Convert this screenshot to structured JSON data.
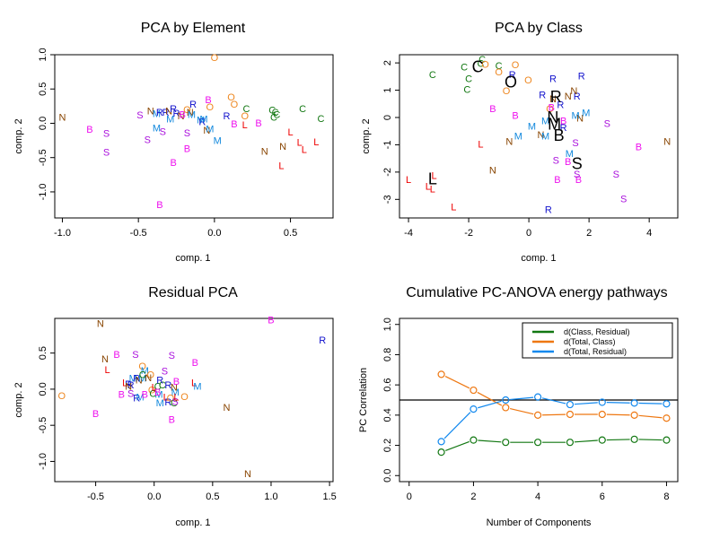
{
  "colors": {
    "B": "#ee11ee",
    "C": "#117711",
    "L": "#ee0000",
    "M": "#1188dd",
    "N": "#884400",
    "O": "#ee8822",
    "R": "#1111cc",
    "S": "#aa11dd",
    "green": "#117711",
    "orange": "#ee7711",
    "blue": "#1188ee",
    "black": "#000000"
  },
  "chart_data": [
    {
      "type": "scatter",
      "title": "PCA by Element",
      "xlabel": "comp. 1",
      "ylabel": "comp. 2",
      "xlim": [
        -1.05,
        0.78
      ],
      "ylim": [
        -1.38,
        1.0
      ],
      "xticks": [
        -1.0,
        -0.5,
        0.0,
        0.5
      ],
      "xtick_labels": [
        "-1.0",
        "-0.5",
        "0.0",
        "0.5"
      ],
      "yticks": [
        -1.0,
        -0.5,
        0.0,
        0.5,
        1.0
      ],
      "ytick_labels": [
        "-1.0",
        "-0.5",
        "0.0",
        "0.5",
        "1.0"
      ],
      "points": [
        {
          "label": "N",
          "x": -1.0,
          "y": 0.08
        },
        {
          "label": "B",
          "x": -0.82,
          "y": -0.1
        },
        {
          "label": "S",
          "x": -0.71,
          "y": -0.16
        },
        {
          "label": "S",
          "x": -0.71,
          "y": -0.43
        },
        {
          "label": "S",
          "x": -0.49,
          "y": 0.11
        },
        {
          "label": "S",
          "x": -0.44,
          "y": -0.25
        },
        {
          "label": "N",
          "x": -0.42,
          "y": 0.17
        },
        {
          "label": "M",
          "x": -0.38,
          "y": 0.13
        },
        {
          "label": "R",
          "x": -0.36,
          "y": 0.15
        },
        {
          "label": "M",
          "x": -0.38,
          "y": -0.08
        },
        {
          "label": "S",
          "x": -0.34,
          "y": -0.13
        },
        {
          "label": "B",
          "x": -0.36,
          "y": -1.2
        },
        {
          "label": "R",
          "x": -0.32,
          "y": 0.15
        },
        {
          "label": "N",
          "x": -0.3,
          "y": 0.17
        },
        {
          "label": "M",
          "x": -0.29,
          "y": 0.05
        },
        {
          "label": "R",
          "x": -0.27,
          "y": 0.2
        },
        {
          "label": "R",
          "x": -0.25,
          "y": 0.14
        },
        {
          "label": "B",
          "x": -0.27,
          "y": -0.58
        },
        {
          "label": "N",
          "x": -0.22,
          "y": 0.1
        },
        {
          "label": "B",
          "x": -0.21,
          "y": 0.12
        },
        {
          "label": "O",
          "x": -0.18,
          "y": 0.19
        },
        {
          "label": "N",
          "x": -0.16,
          "y": 0.15
        },
        {
          "label": "M",
          "x": -0.15,
          "y": 0.12
        },
        {
          "label": "R",
          "x": -0.14,
          "y": 0.27
        },
        {
          "label": "S",
          "x": -0.18,
          "y": -0.15
        },
        {
          "label": "B",
          "x": -0.18,
          "y": -0.38
        },
        {
          "label": "M",
          "x": -0.09,
          "y": 0.04
        },
        {
          "label": "R",
          "x": -0.08,
          "y": 0.01
        },
        {
          "label": "M",
          "x": -0.07,
          "y": 0.05
        },
        {
          "label": "N",
          "x": -0.05,
          "y": -0.11
        },
        {
          "label": "M",
          "x": -0.03,
          "y": -0.09
        },
        {
          "label": "B",
          "x": -0.04,
          "y": 0.33
        },
        {
          "label": "O",
          "x": -0.03,
          "y": 0.23
        },
        {
          "label": "M",
          "x": 0.02,
          "y": -0.26
        },
        {
          "label": "O",
          "x": 0.0,
          "y": 0.95
        },
        {
          "label": "R",
          "x": 0.08,
          "y": 0.1
        },
        {
          "label": "O",
          "x": 0.11,
          "y": 0.37
        },
        {
          "label": "O",
          "x": 0.13,
          "y": 0.27
        },
        {
          "label": "B",
          "x": 0.13,
          "y": -0.02
        },
        {
          "label": "O",
          "x": 0.2,
          "y": 0.1
        },
        {
          "label": "L",
          "x": 0.2,
          "y": -0.03
        },
        {
          "label": "C",
          "x": 0.21,
          "y": 0.2
        },
        {
          "label": "B",
          "x": 0.29,
          "y": -0.01
        },
        {
          "label": "N",
          "x": 0.33,
          "y": -0.42
        },
        {
          "label": "C",
          "x": 0.38,
          "y": 0.18
        },
        {
          "label": "C",
          "x": 0.39,
          "y": 0.08
        },
        {
          "label": "C",
          "x": 0.4,
          "y": 0.15
        },
        {
          "label": "C",
          "x": 0.41,
          "y": 0.12
        },
        {
          "label": "N",
          "x": 0.45,
          "y": -0.35
        },
        {
          "label": "L",
          "x": 0.44,
          "y": -0.63
        },
        {
          "label": "L",
          "x": 0.5,
          "y": -0.14
        },
        {
          "label": "L",
          "x": 0.56,
          "y": -0.29
        },
        {
          "label": "L",
          "x": 0.59,
          "y": -0.39
        },
        {
          "label": "C",
          "x": 0.58,
          "y": 0.2
        },
        {
          "label": "L",
          "x": 0.67,
          "y": -0.28
        },
        {
          "label": "C",
          "x": 0.7,
          "y": 0.06
        }
      ]
    },
    {
      "type": "scatter",
      "title": "PCA by Class",
      "xlabel": "comp. 1",
      "ylabel": "comp. 2",
      "xlim": [
        -4.3,
        4.95
      ],
      "ylim": [
        -3.68,
        2.3
      ],
      "xticks": [
        -4,
        -2,
        0,
        2,
        4
      ],
      "xtick_labels": [
        "-4",
        "-2",
        "0",
        "2",
        "4"
      ],
      "yticks": [
        -3,
        -2,
        -1,
        0,
        1,
        2
      ],
      "ytick_labels": [
        "-3",
        "-2",
        "-1",
        "0",
        "1",
        "2"
      ],
      "points": [
        {
          "label": "C",
          "x": -3.2,
          "y": 1.55
        },
        {
          "label": "C",
          "x": -2.15,
          "y": 1.83
        },
        {
          "label": "C",
          "x": -2.0,
          "y": 1.4
        },
        {
          "label": "C",
          "x": -2.05,
          "y": 1.0
        },
        {
          "label": "C",
          "x": -1.55,
          "y": 2.1
        },
        {
          "label": "C",
          "x": -1.6,
          "y": 1.95
        },
        {
          "label": "C",
          "x": -1.0,
          "y": 1.88
        },
        {
          "label": "O",
          "x": -1.45,
          "y": 1.92
        },
        {
          "label": "O",
          "x": -1.0,
          "y": 1.65
        },
        {
          "label": "O",
          "x": -0.45,
          "y": 1.9
        },
        {
          "label": "O",
          "x": -0.02,
          "y": 1.35
        },
        {
          "label": "O",
          "x": -0.75,
          "y": 0.95
        },
        {
          "label": "O",
          "x": 0.7,
          "y": 0.3
        },
        {
          "label": "R",
          "x": -0.55,
          "y": 1.55
        },
        {
          "label": "R",
          "x": 0.8,
          "y": 1.4
        },
        {
          "label": "R",
          "x": 1.75,
          "y": 1.5
        },
        {
          "label": "R",
          "x": 0.45,
          "y": 0.8
        },
        {
          "label": "R",
          "x": 1.05,
          "y": 0.45
        },
        {
          "label": "R",
          "x": 1.6,
          "y": 0.75
        },
        {
          "label": "R",
          "x": 1.15,
          "y": -0.4
        },
        {
          "label": "R",
          "x": 0.65,
          "y": -3.4
        },
        {
          "label": "N",
          "x": 1.5,
          "y": 0.95
        },
        {
          "label": "N",
          "x": 1.3,
          "y": 0.75
        },
        {
          "label": "N",
          "x": 0.8,
          "y": 0.65
        },
        {
          "label": "N",
          "x": 1.7,
          "y": -0.05
        },
        {
          "label": "N",
          "x": -0.65,
          "y": -0.9
        },
        {
          "label": "N",
          "x": 0.4,
          "y": -0.65
        },
        {
          "label": "N",
          "x": -1.2,
          "y": -1.95
        },
        {
          "label": "N",
          "x": 4.6,
          "y": -0.9
        },
        {
          "label": "B",
          "x": -1.2,
          "y": 0.3
        },
        {
          "label": "B",
          "x": -0.45,
          "y": 0.05
        },
        {
          "label": "B",
          "x": 0.75,
          "y": 0.35
        },
        {
          "label": "B",
          "x": 1.15,
          "y": -0.15
        },
        {
          "label": "B",
          "x": 3.65,
          "y": -1.1
        },
        {
          "label": "B",
          "x": 1.3,
          "y": -1.65
        },
        {
          "label": "B",
          "x": 0.95,
          "y": -2.3
        },
        {
          "label": "B",
          "x": 1.65,
          "y": -2.3
        },
        {
          "label": "M",
          "x": 0.1,
          "y": -0.35
        },
        {
          "label": "M",
          "x": -0.35,
          "y": -0.7
        },
        {
          "label": "M",
          "x": 0.55,
          "y": -0.7
        },
        {
          "label": "M",
          "x": 0.55,
          "y": -0.15
        },
        {
          "label": "M",
          "x": 1.55,
          "y": 0.05
        },
        {
          "label": "M",
          "x": 1.9,
          "y": 0.15
        },
        {
          "label": "M",
          "x": 1.35,
          "y": -1.35
        },
        {
          "label": "S",
          "x": 1.55,
          "y": -0.95
        },
        {
          "label": "S",
          "x": 2.6,
          "y": -0.25
        },
        {
          "label": "S",
          "x": 0.9,
          "y": -1.6
        },
        {
          "label": "S",
          "x": 1.6,
          "y": -2.1
        },
        {
          "label": "S",
          "x": 2.9,
          "y": -2.1
        },
        {
          "label": "S",
          "x": 3.15,
          "y": -3.0
        },
        {
          "label": "L",
          "x": -4.0,
          "y": -2.3
        },
        {
          "label": "L",
          "x": -3.15,
          "y": -2.15
        },
        {
          "label": "L",
          "x": -3.35,
          "y": -2.55
        },
        {
          "label": "L",
          "x": -3.2,
          "y": -2.65
        },
        {
          "label": "L",
          "x": -2.5,
          "y": -3.3
        },
        {
          "label": "L",
          "x": -1.6,
          "y": -1.0
        }
      ],
      "centroids": [
        {
          "label": "C",
          "x": -1.7,
          "y": 1.85
        },
        {
          "label": "O",
          "x": -0.6,
          "y": 1.3
        },
        {
          "label": "R",
          "x": 0.9,
          "y": 0.75
        },
        {
          "label": "N",
          "x": 0.8,
          "y": 0.0
        },
        {
          "label": "M",
          "x": 0.85,
          "y": -0.25
        },
        {
          "label": "B",
          "x": 1.0,
          "y": -0.65
        },
        {
          "label": "S",
          "x": 1.6,
          "y": -1.7
        },
        {
          "label": "L",
          "x": -3.2,
          "y": -2.25
        }
      ]
    },
    {
      "type": "scatter",
      "title": "Residual PCA",
      "xlabel": "comp. 1",
      "ylabel": "comp. 2",
      "xlim": [
        -0.85,
        1.53
      ],
      "ylim": [
        -1.28,
        0.98
      ],
      "xticks": [
        -0.5,
        0.0,
        0.5,
        1.0,
        1.5
      ],
      "xtick_labels": [
        "-0.5",
        "0.0",
        "0.5",
        "1.0",
        "1.5"
      ],
      "yticks": [
        -1.0,
        -0.5,
        0.0,
        0.5
      ],
      "ytick_labels": [
        "-1.0",
        "-0.5",
        "0.0",
        "0.5"
      ],
      "points": [
        {
          "label": "O",
          "x": -0.79,
          "y": -0.1
        },
        {
          "label": "N",
          "x": -0.46,
          "y": 0.9
        },
        {
          "label": "N",
          "x": -0.42,
          "y": 0.41
        },
        {
          "label": "L",
          "x": -0.4,
          "y": 0.26
        },
        {
          "label": "B",
          "x": -0.32,
          "y": 0.47
        },
        {
          "label": "B",
          "x": -0.5,
          "y": -0.35
        },
        {
          "label": "B",
          "x": -0.28,
          "y": -0.08
        },
        {
          "label": "S",
          "x": -0.16,
          "y": 0.47
        },
        {
          "label": "S",
          "x": -0.2,
          "y": -0.07
        },
        {
          "label": "L",
          "x": -0.25,
          "y": 0.08
        },
        {
          "label": "R",
          "x": -0.22,
          "y": 0.06
        },
        {
          "label": "R",
          "x": -0.2,
          "y": 0.05
        },
        {
          "label": "N",
          "x": -0.22,
          "y": 0.03
        },
        {
          "label": "M",
          "x": -0.18,
          "y": 0.14
        },
        {
          "label": "R",
          "x": -0.15,
          "y": 0.14
        },
        {
          "label": "N",
          "x": -0.13,
          "y": 0.12
        },
        {
          "label": "M",
          "x": -0.1,
          "y": 0.14
        },
        {
          "label": "O",
          "x": -0.1,
          "y": 0.31
        },
        {
          "label": "M",
          "x": -0.08,
          "y": 0.25
        },
        {
          "label": "C",
          "x": -0.1,
          "y": 0.19
        },
        {
          "label": "O",
          "x": -0.03,
          "y": 0.19
        },
        {
          "label": "N",
          "x": -0.05,
          "y": 0.15
        },
        {
          "label": "R",
          "x": -0.15,
          "y": -0.13
        },
        {
          "label": "M",
          "x": -0.12,
          "y": -0.12
        },
        {
          "label": "B",
          "x": -0.08,
          "y": -0.08
        },
        {
          "label": "O",
          "x": -0.02,
          "y": -0.02
        },
        {
          "label": "C",
          "x": -0.01,
          "y": -0.07
        },
        {
          "label": "L",
          "x": 0.0,
          "y": 0.02
        },
        {
          "label": "C",
          "x": 0.03,
          "y": 0.03
        },
        {
          "label": "C",
          "x": 0.07,
          "y": 0.05
        },
        {
          "label": "M",
          "x": 0.04,
          "y": -0.08
        },
        {
          "label": "B",
          "x": 0.03,
          "y": -0.05
        },
        {
          "label": "R",
          "x": 0.05,
          "y": 0.12
        },
        {
          "label": "S",
          "x": 0.09,
          "y": 0.24
        },
        {
          "label": "L",
          "x": 0.1,
          "y": -0.12
        },
        {
          "label": "M",
          "x": 0.05,
          "y": -0.2
        },
        {
          "label": "R",
          "x": 0.12,
          "y": 0.05
        },
        {
          "label": "N",
          "x": 0.17,
          "y": 0.02
        },
        {
          "label": "M",
          "x": 0.18,
          "y": -0.05
        },
        {
          "label": "B",
          "x": 0.19,
          "y": 0.1
        },
        {
          "label": "R",
          "x": 0.12,
          "y": -0.19
        },
        {
          "label": "O",
          "x": 0.14,
          "y": -0.13
        },
        {
          "label": "C",
          "x": 0.17,
          "y": -0.2
        },
        {
          "label": "S",
          "x": 0.18,
          "y": -0.18
        },
        {
          "label": "L",
          "x": 0.19,
          "y": -0.12
        },
        {
          "label": "O",
          "x": 0.26,
          "y": -0.11
        },
        {
          "label": "S",
          "x": 0.15,
          "y": 0.46
        },
        {
          "label": "B",
          "x": 0.35,
          "y": 0.36
        },
        {
          "label": "B",
          "x": 0.15,
          "y": -0.43
        },
        {
          "label": "L",
          "x": 0.34,
          "y": 0.08
        },
        {
          "label": "M",
          "x": 0.37,
          "y": 0.03
        },
        {
          "label": "N",
          "x": 0.62,
          "y": -0.26
        },
        {
          "label": "N",
          "x": 0.8,
          "y": -1.18
        },
        {
          "label": "B",
          "x": 1.0,
          "y": 0.95
        },
        {
          "label": "R",
          "x": 1.44,
          "y": 0.67
        }
      ]
    },
    {
      "type": "line",
      "title": "Cumulative PC-ANOVA energy pathways",
      "xlabel": "Number of Components",
      "ylabel": "PC Correlation",
      "xlim": [
        -0.3,
        8.35
      ],
      "ylim": [
        -0.04,
        1.04
      ],
      "xticks": [
        0,
        2,
        4,
        6,
        8
      ],
      "xtick_labels": [
        "0",
        "2",
        "4",
        "6",
        "8"
      ],
      "yticks": [
        0.0,
        0.2,
        0.4,
        0.6,
        0.8,
        1.0
      ],
      "ytick_labels": [
        "0.0",
        "0.2",
        "0.4",
        "0.6",
        "0.8",
        "1.0"
      ],
      "hline": 0.5,
      "legend_position": "top-right",
      "x": [
        1,
        2,
        3,
        4,
        5,
        6,
        7,
        8
      ],
      "series": [
        {
          "name": "d(Class, Residual)",
          "color_key": "green",
          "values": [
            0.155,
            0.235,
            0.22,
            0.22,
            0.22,
            0.235,
            0.24,
            0.235
          ]
        },
        {
          "name": "d(Total, Class)",
          "color_key": "orange",
          "values": [
            0.67,
            0.565,
            0.45,
            0.4,
            0.405,
            0.405,
            0.4,
            0.38
          ]
        },
        {
          "name": "d(Total, Residual)",
          "color_key": "blue",
          "values": [
            0.225,
            0.44,
            0.5,
            0.52,
            0.47,
            0.485,
            0.48,
            0.475
          ]
        }
      ]
    }
  ]
}
